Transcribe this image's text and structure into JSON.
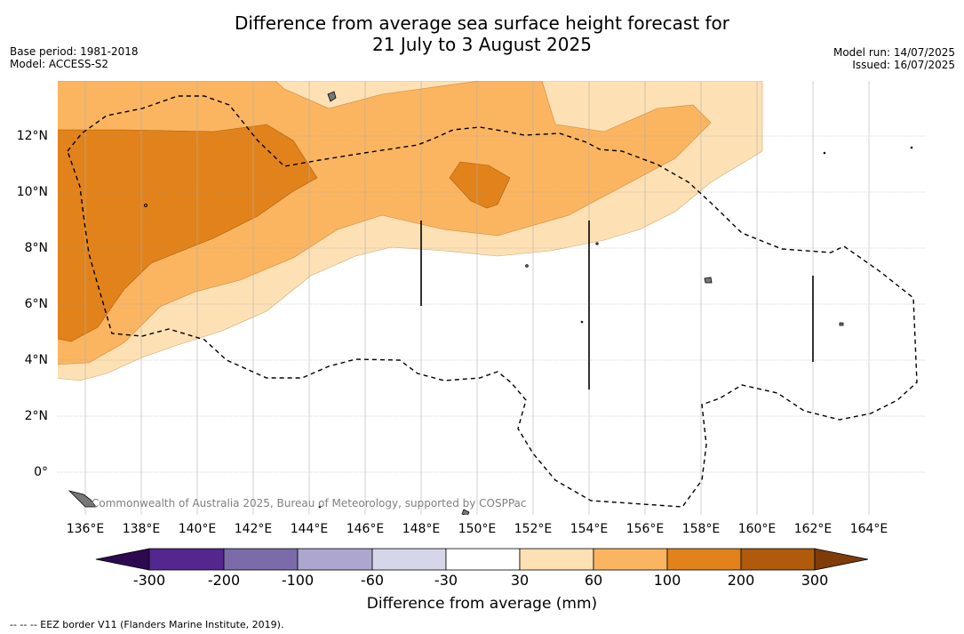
{
  "title": {
    "line1": "Difference from average sea surface height forecast for",
    "line2": "21 July to 3 August 2025"
  },
  "meta_left": {
    "base_period": "Base period: 1981-2018",
    "model": "Model: ACCESS-S2"
  },
  "meta_right": {
    "model_run": "Model run: 14/07/2025",
    "issued": "Issued: 16/07/2025"
  },
  "map": {
    "y_ticks": [
      "12°N",
      "10°N",
      "8°N",
      "6°N",
      "4°N",
      "2°N",
      "0°"
    ],
    "x_ticks": [
      "136°E",
      "138°E",
      "140°E",
      "142°E",
      "144°E",
      "146°E",
      "148°E",
      "150°E",
      "152°E",
      "154°E",
      "156°E",
      "158°E",
      "160°E",
      "162°E",
      "164°E"
    ],
    "copyright": "Commonwealth of Australia 2025, Bureau of Meteorology, supported by COSPPac"
  },
  "colorbar": {
    "labels": [
      "-300",
      "-200",
      "-100",
      "-60",
      "-30",
      "30",
      "60",
      "100",
      "200",
      "300"
    ],
    "colors": [
      "#2d0a50",
      "#54278f",
      "#7b6ca9",
      "#ada6cf",
      "#d6d6ea",
      "#ffffff",
      "#fde0b4",
      "#fbb561",
      "#e2821a",
      "#b05a0c",
      "#7f3b08"
    ],
    "title": "Difference from average (mm)"
  },
  "footer": "--  --  -- EEZ border V11 (Flanders Marine Institute, 2019)."
}
